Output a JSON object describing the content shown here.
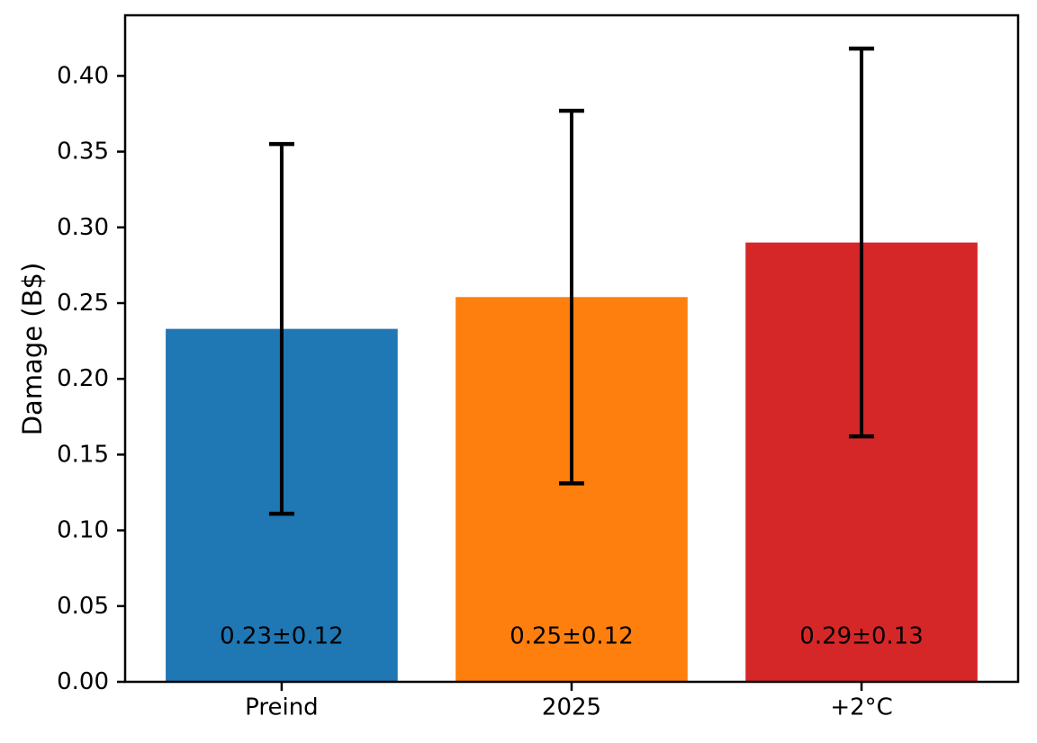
{
  "figure": {
    "background": "#ffffff"
  },
  "chart_data": {
    "type": "bar",
    "title": "",
    "xlabel": "",
    "ylabel": "Damage (B$)",
    "categories": [
      "Preind",
      "2025",
      "+2°C"
    ],
    "x": [
      0,
      1,
      2
    ],
    "values": [
      0.233,
      0.254,
      0.29
    ],
    "errors": [
      0.122,
      0.123,
      0.128
    ],
    "bar_labels": [
      "0.23±0.12",
      "0.25±0.12",
      "0.29±0.13"
    ],
    "bar_label_y": 0.03,
    "colors": [
      "#1f77b4",
      "#ff7f0e",
      "#d62728"
    ],
    "bar_width": 0.8,
    "xlim": [
      -0.54,
      2.54
    ],
    "ylim": [
      0,
      0.44
    ],
    "yticks": {
      "values": [
        0.0,
        0.05,
        0.1,
        0.15,
        0.2,
        0.25,
        0.3,
        0.35,
        0.4
      ],
      "labels": [
        "0.00",
        "0.05",
        "0.10",
        "0.15",
        "0.20",
        "0.25",
        "0.30",
        "0.35",
        "0.40"
      ]
    },
    "grid": false,
    "legend_visible": false,
    "error_color": "#000000",
    "axis_color": "#000000",
    "text_color": "#000000"
  }
}
